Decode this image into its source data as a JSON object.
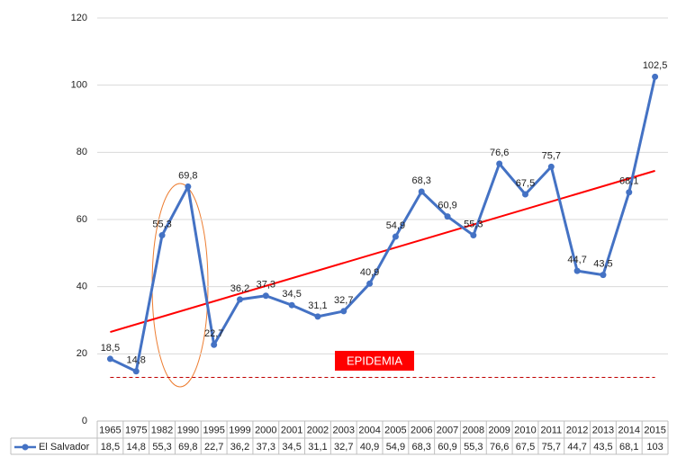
{
  "chart_data": {
    "type": "line",
    "categories": [
      "1965",
      "1975",
      "1982",
      "1990",
      "1995",
      "1999",
      "2000",
      "2001",
      "2002",
      "2003",
      "2004",
      "2005",
      "2006",
      "2007",
      "2008",
      "2009",
      "2010",
      "2011",
      "2012",
      "2013",
      "2014",
      "2015"
    ],
    "series": [
      {
        "name": "El Salvador",
        "color": "#4472c4",
        "values": [
          18.5,
          14.8,
          55.3,
          69.8,
          22.7,
          36.2,
          37.3,
          34.5,
          31.1,
          32.7,
          40.9,
          54.9,
          68.3,
          60.9,
          55.3,
          76.6,
          67.5,
          75.7,
          44.7,
          43.5,
          68.1,
          102.5
        ],
        "value_labels": [
          "18,5",
          "14,8",
          "55,3",
          "69,8",
          "22,7",
          "36,2",
          "37,3",
          "34,5",
          "31,1",
          "32,7",
          "40,9",
          "54,9",
          "68,3",
          "60,9",
          "55,3",
          "76,6",
          "67,5",
          "75,7",
          "44,7",
          "43,5",
          "68,1",
          "102,5"
        ],
        "table_labels": [
          "18,5",
          "14,8",
          "55,3",
          "69,8",
          "22,7",
          "36,2",
          "37,3",
          "34,5",
          "31,1",
          "32,7",
          "40,9",
          "54,9",
          "68,3",
          "60,9",
          "55,3",
          "76,6",
          "67,5",
          "75,7",
          "44,7",
          "43,5",
          "68,1",
          "103"
        ]
      }
    ],
    "trendline": {
      "color": "#ff0000",
      "values": [
        26.5,
        74.5
      ]
    },
    "threshold": {
      "value": 13,
      "color": "#c00000"
    },
    "annotation": {
      "text": "EPIDEMIA",
      "color": "#ff0000"
    },
    "ylim": [
      0,
      120
    ],
    "yticks": [
      0,
      20,
      40,
      60,
      80,
      100,
      120
    ],
    "grid": true
  }
}
